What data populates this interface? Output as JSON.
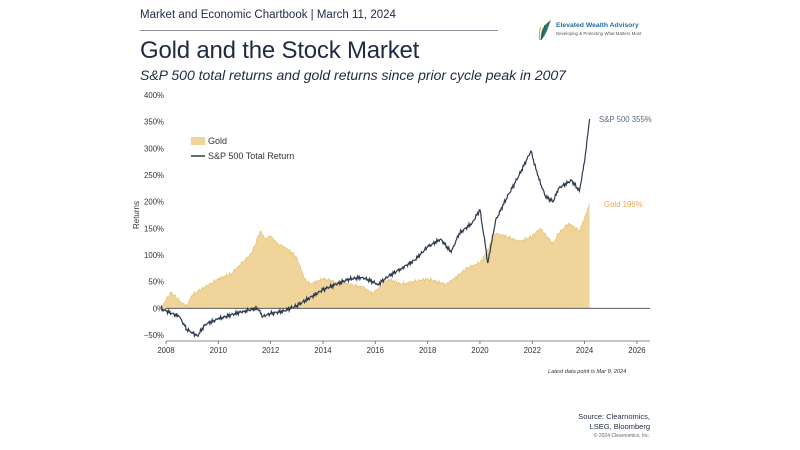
{
  "header": {
    "chartbook": "Market and Economic Chartbook | March 11, 2024",
    "title": "Gold and the Stock Market",
    "subtitle": "S&P 500 total returns and gold returns since prior cycle peak in 2007"
  },
  "logo": {
    "name": "Elevated Wealth Advisory",
    "tagline": "Developing & Protecting What Matters Most"
  },
  "footer": {
    "note": "Latest data point is Mar 8, 2024",
    "source_line1": "Source: Clearnomics,",
    "source_line2": "LSEG, Bloomberg",
    "copyright": "© 2024 Clearnomics, Inc."
  },
  "colors": {
    "gold": "#f0d59a",
    "gold_edge": "#e8c47e",
    "sp500": "#2e3a4e",
    "gold_label": "#e8a85a",
    "sp_label": "#5a6a80"
  },
  "chart_data": {
    "type": "area",
    "ylabel": "Returns",
    "xlim": [
      2008,
      2026.5
    ],
    "ylim": [
      -50,
      400
    ],
    "yticks": [
      "400%",
      "350%",
      "300%",
      "250%",
      "200%",
      "150%",
      "100%",
      "50%",
      "0%",
      "−50%"
    ],
    "xticks": [
      "2008",
      "2010",
      "2012",
      "2014",
      "2016",
      "2018",
      "2020",
      "2022",
      "2024",
      "2026"
    ],
    "legend": {
      "placement": "top-left",
      "entries": [
        "Gold",
        "S&P 500 Total Return"
      ]
    },
    "annotations": {
      "sp500": "S&P 500 355%",
      "gold": "Gold 196%"
    },
    "series": [
      {
        "name": "Gold",
        "x": [
          2007.8,
          2008.0,
          2008.2,
          2008.6,
          2008.8,
          2009.0,
          2009.5,
          2010.0,
          2010.5,
          2011.0,
          2011.3,
          2011.6,
          2011.8,
          2012.0,
          2012.3,
          2012.7,
          2013.0,
          2013.3,
          2013.5,
          2014.0,
          2014.5,
          2015.0,
          2015.5,
          2015.9,
          2016.5,
          2017.0,
          2017.5,
          2018.0,
          2018.7,
          2019.0,
          2019.5,
          2020.0,
          2020.3,
          2020.6,
          2021.0,
          2021.5,
          2022.0,
          2022.3,
          2022.8,
          2023.0,
          2023.4,
          2023.8,
          2024.0,
          2024.19
        ],
        "values": [
          0,
          15,
          30,
          10,
          5,
          25,
          40,
          55,
          65,
          90,
          105,
          145,
          130,
          135,
          120,
          110,
          95,
          55,
          45,
          55,
          50,
          45,
          40,
          28,
          55,
          45,
          50,
          55,
          45,
          55,
          75,
          85,
          110,
          140,
          135,
          125,
          135,
          150,
          120,
          140,
          160,
          145,
          170,
          196
        ]
      },
      {
        "name": "S&P 500 Total Return",
        "x": [
          2007.8,
          2008.0,
          2008.5,
          2008.8,
          2009.0,
          2009.2,
          2009.5,
          2010.0,
          2010.5,
          2011.0,
          2011.5,
          2011.7,
          2012.0,
          2012.5,
          2013.0,
          2013.5,
          2014.0,
          2014.5,
          2015.0,
          2015.5,
          2015.9,
          2016.1,
          2016.5,
          2017.0,
          2017.5,
          2018.0,
          2018.5,
          2018.9,
          2019.2,
          2019.7,
          2020.0,
          2020.2,
          2020.3,
          2020.6,
          2021.0,
          2021.5,
          2021.95,
          2022.2,
          2022.5,
          2022.8,
          2023.0,
          2023.5,
          2023.8,
          2024.0,
          2024.19
        ],
        "values": [
          0,
          -5,
          -15,
          -40,
          -45,
          -52,
          -30,
          -20,
          -12,
          -5,
          0,
          -15,
          -10,
          -5,
          5,
          20,
          35,
          45,
          55,
          58,
          50,
          45,
          60,
          75,
          90,
          115,
          130,
          105,
          140,
          160,
          185,
          120,
          85,
          165,
          205,
          250,
          295,
          250,
          210,
          200,
          225,
          240,
          220,
          275,
          355
        ]
      }
    ]
  }
}
